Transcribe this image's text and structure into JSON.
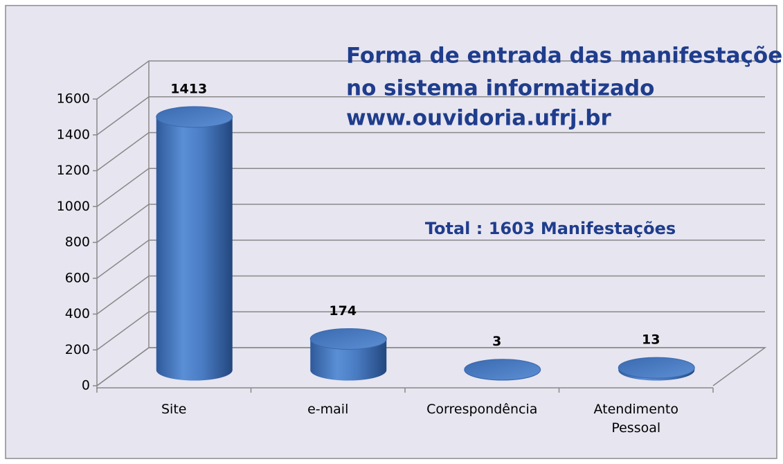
{
  "chart_data": {
    "type": "bar3d",
    "title": [
      "Forma de entrada das manifestações",
      "no sistema informatizado",
      "www.ouvidoria.ufrj.br"
    ],
    "annotation": "Total : 1603 Manifestações",
    "categories": [
      "Site",
      "e-mail",
      "Correspondência",
      "Atendimento Pessoal"
    ],
    "values": [
      1413,
      174,
      3,
      13
    ],
    "color": "#4f81bd",
    "ylim": [
      0,
      1600
    ],
    "yticks": [
      0,
      200,
      400,
      600,
      800,
      1000,
      1200,
      1400,
      1600
    ],
    "grid": true
  }
}
